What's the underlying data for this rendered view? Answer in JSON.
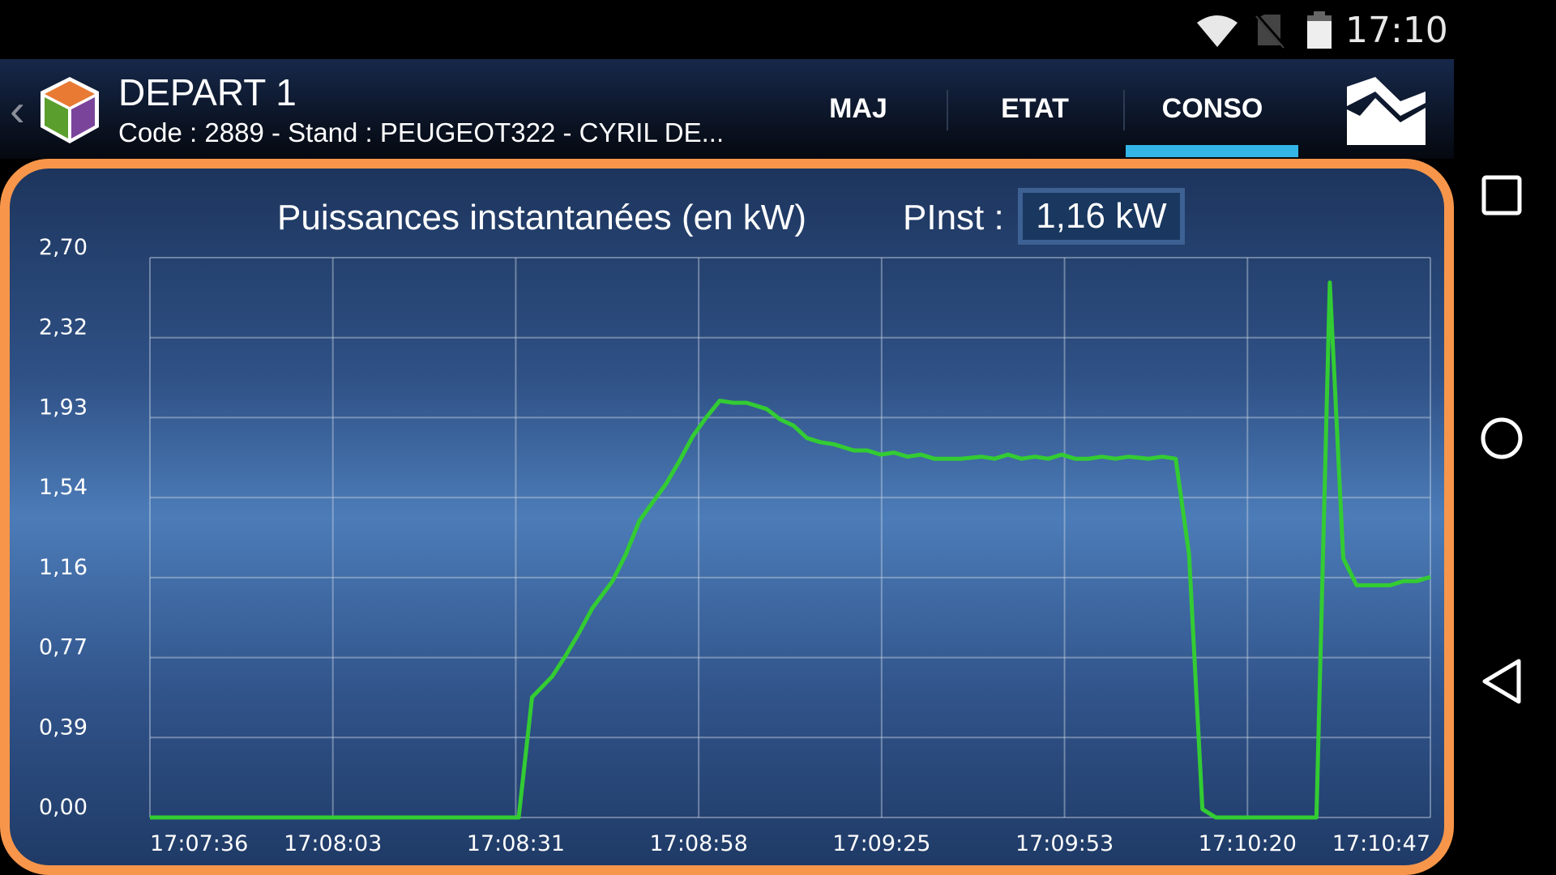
{
  "status_bar": {
    "time": "17:10",
    "icons": [
      "wifi-icon",
      "no-sim-icon",
      "battery-icon"
    ]
  },
  "header": {
    "title": "DEPART 1",
    "subtitle": "Code : 2889 - Stand : PEUGEOT322 - CYRIL DE...",
    "tabs": [
      {
        "label": "MAJ"
      },
      {
        "label": "ETAT"
      },
      {
        "label": "CONSO",
        "active": true
      }
    ],
    "accent_color": "#33b5e5"
  },
  "panel": {
    "title": "Puissances instantanées (en kW)",
    "pinst_label": "PInst :",
    "pinst_value": "1,16 kW",
    "border_color": "#f7964a"
  },
  "chart_data": {
    "type": "line",
    "title": "Puissances instantanées (en kW)",
    "xlim": [
      "17:07:36",
      "17:10:47"
    ],
    "ylim": [
      0,
      2.7
    ],
    "grid": true,
    "line_color": "#33cc33",
    "y_ticks": [
      "0,00",
      "0,39",
      "0,77",
      "1,16",
      "1,54",
      "1,93",
      "2,32",
      "2,70"
    ],
    "x_ticks": [
      "17:07:36",
      "17:08:03",
      "17:08:31",
      "17:08:58",
      "17:09:25",
      "17:09:53",
      "17:10:20",
      "17:10:47"
    ],
    "points": [
      [
        "17:07:36",
        0
      ],
      [
        "17:08:31",
        0
      ],
      [
        "17:08:33",
        0.58
      ],
      [
        "17:08:36",
        0.68
      ],
      [
        "17:08:38",
        0.78
      ],
      [
        "17:08:40",
        0.89
      ],
      [
        "17:08:42",
        1.01
      ],
      [
        "17:08:45",
        1.14
      ],
      [
        "17:08:47",
        1.27
      ],
      [
        "17:08:49",
        1.43
      ],
      [
        "17:08:51",
        1.52
      ],
      [
        "17:08:53",
        1.61
      ],
      [
        "17:08:55",
        1.72
      ],
      [
        "17:08:57",
        1.84
      ],
      [
        "17:08:59",
        1.93
      ],
      [
        "17:09:01",
        2.01
      ],
      [
        "17:09:03",
        2.0
      ],
      [
        "17:09:05",
        2.0
      ],
      [
        "17:09:08",
        1.97
      ],
      [
        "17:09:10",
        1.92
      ],
      [
        "17:09:12",
        1.89
      ],
      [
        "17:09:14",
        1.83
      ],
      [
        "17:09:16",
        1.81
      ],
      [
        "17:09:18",
        1.8
      ],
      [
        "17:09:21",
        1.77
      ],
      [
        "17:09:23",
        1.77
      ],
      [
        "17:09:25",
        1.75
      ],
      [
        "17:09:27",
        1.76
      ],
      [
        "17:09:29",
        1.74
      ],
      [
        "17:09:31",
        1.75
      ],
      [
        "17:09:33",
        1.73
      ],
      [
        "17:09:35",
        1.73
      ],
      [
        "17:09:37",
        1.73
      ],
      [
        "17:09:40",
        1.74
      ],
      [
        "17:09:42",
        1.73
      ],
      [
        "17:09:44",
        1.75
      ],
      [
        "17:09:46",
        1.73
      ],
      [
        "17:09:48",
        1.74
      ],
      [
        "17:09:50",
        1.73
      ],
      [
        "17:09:52",
        1.75
      ],
      [
        "17:09:54",
        1.73
      ],
      [
        "17:09:56",
        1.73
      ],
      [
        "17:09:58",
        1.74
      ],
      [
        "17:10:00",
        1.73
      ],
      [
        "17:10:02",
        1.74
      ],
      [
        "17:10:05",
        1.73
      ],
      [
        "17:10:07",
        1.74
      ],
      [
        "17:10:09",
        1.73
      ],
      [
        "17:10:11",
        1.27
      ],
      [
        "17:10:13",
        0.04
      ],
      [
        "17:10:15",
        0
      ],
      [
        "17:10:30",
        0
      ],
      [
        "17:10:32",
        2.58
      ],
      [
        "17:10:34",
        1.25
      ],
      [
        "17:10:36",
        1.12
      ],
      [
        "17:10:38",
        1.12
      ],
      [
        "17:10:41",
        1.12
      ],
      [
        "17:10:43",
        1.14
      ],
      [
        "17:10:45",
        1.14
      ],
      [
        "17:10:47",
        1.16
      ]
    ]
  }
}
